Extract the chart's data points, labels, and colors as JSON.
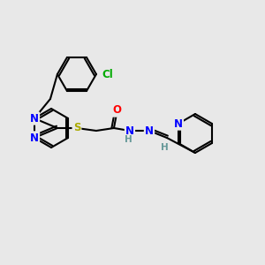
{
  "background_color": "#e8e8e8",
  "figsize": [
    3.0,
    3.0
  ],
  "dpi": 100,
  "bond_color": "#000000",
  "atom_colors": {
    "N": "#0000ff",
    "O": "#ff0000",
    "S": "#aaaa00",
    "Cl": "#00aa00",
    "H": "#669999",
    "C": "#000000"
  }
}
